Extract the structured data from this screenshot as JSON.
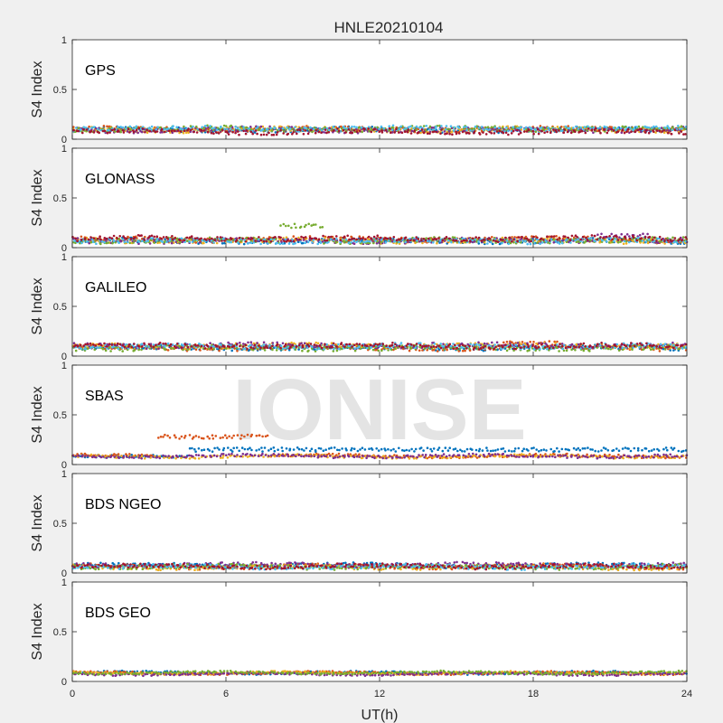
{
  "chart_data": {
    "type": "scatter",
    "title": "HNLE20210104",
    "xlabel": "UT(h)",
    "xlim": [
      0,
      24
    ],
    "xticks": [
      "0",
      "6",
      "12",
      "18",
      "24"
    ],
    "watermark": "IONISE",
    "series_colors": [
      "#0072BD",
      "#D95319",
      "#EDB120",
      "#7E2F8E",
      "#77AC30",
      "#4DBEEE",
      "#A2142F"
    ],
    "panels": [
      {
        "name": "GPS",
        "ylabel": "S4 Index",
        "ylim": [
          0,
          1
        ],
        "yticks": [
          "0",
          "0.5",
          "1"
        ],
        "base": 0.09,
        "spread": 0.035,
        "nseries": 7,
        "bumps": []
      },
      {
        "name": "GLONASS",
        "ylabel": "S4 Index",
        "ylim": [
          0,
          1
        ],
        "yticks": [
          "0",
          "0.5",
          "1"
        ],
        "base": 0.08,
        "spread": 0.035,
        "nseries": 7,
        "bumps": [
          {
            "series": 4,
            "x0": 8.1,
            "x1": 9.8,
            "y": 0.22
          },
          {
            "series": 3,
            "x0": 20.5,
            "x1": 22.5,
            "y": 0.12
          }
        ]
      },
      {
        "name": "GALILEO",
        "ylabel": "S4 Index",
        "ylim": [
          0,
          1
        ],
        "yticks": [
          "0",
          "0.5",
          "1"
        ],
        "base": 0.09,
        "spread": 0.035,
        "nseries": 7,
        "bumps": [
          {
            "series": 1,
            "x0": 16.8,
            "x1": 19.0,
            "y": 0.13
          }
        ]
      },
      {
        "name": "SBAS",
        "ylabel": "S4 Index",
        "ylim": [
          0,
          1
        ],
        "yticks": [
          "0",
          "0.5",
          "1"
        ],
        "base": 0.08,
        "spread": 0.02,
        "nseries": 4,
        "bumps": [
          {
            "series": 1,
            "x0": 3.3,
            "x1": 7.7,
            "y": 0.28
          },
          {
            "series": 0,
            "x0": 4.5,
            "x1": 24,
            "y": 0.15
          }
        ]
      },
      {
        "name": "BDS NGEO",
        "ylabel": "S4 Index",
        "ylim": [
          0,
          1
        ],
        "yticks": [
          "0",
          "0.5",
          "1"
        ],
        "base": 0.07,
        "spread": 0.03,
        "nseries": 7,
        "bumps": []
      },
      {
        "name": "BDS GEO",
        "ylabel": "S4 Index",
        "ylim": [
          0,
          1
        ],
        "yticks": [
          "0",
          "0.5",
          "1"
        ],
        "base": 0.08,
        "spread": 0.015,
        "nseries": 5,
        "bumps": []
      }
    ]
  }
}
